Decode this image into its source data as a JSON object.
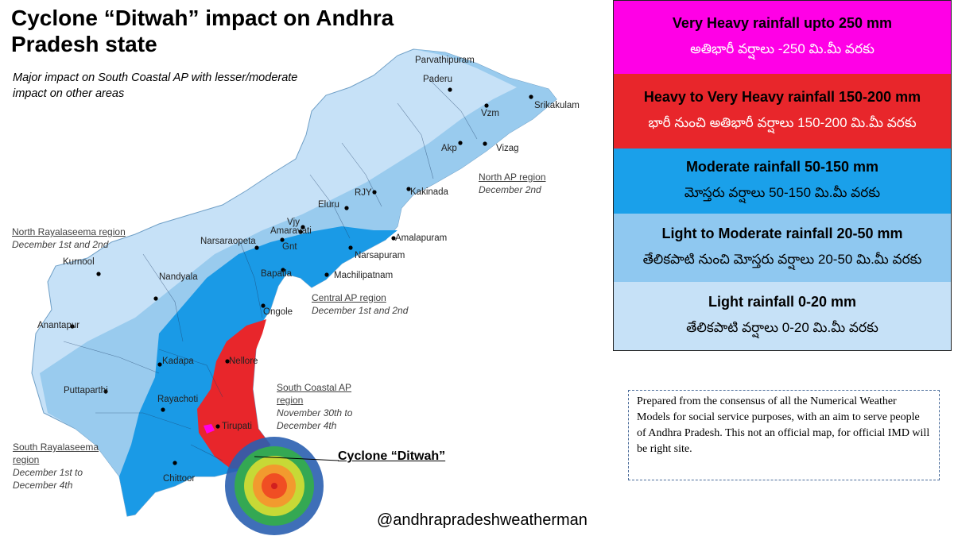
{
  "header": {
    "title": "Cyclone “Ditwah” impact on Andhra Pradesh state",
    "subtitle": "Major impact on South Coastal AP with lesser/moderate impact on other areas"
  },
  "map": {
    "cities": [
      "Parvathipuram",
      "Paderu",
      "Vzm",
      "Srikakulam",
      "Akp",
      "Vizag",
      "Kakinada",
      "RJY",
      "Eluru",
      "Vjy",
      "Amaravati",
      "Gnt",
      "Narsaraopeta",
      "Amalapuram",
      "Narsapuram",
      "Machilipatnam",
      "Bapatla",
      "Ongole",
      "Kurnool",
      "Nandyala",
      "Anantapur",
      "Kadapa",
      "Nellore",
      "Puttaparthi",
      "Rayachoti",
      "Tirupati",
      "Chittoor"
    ],
    "regions": [
      {
        "name": "North AP region",
        "dates": "December 2nd"
      },
      {
        "name": "North Rayalaseema region",
        "dates": "December 1st and 2nd"
      },
      {
        "name": "Central AP region",
        "dates": "December 1st and 2nd"
      },
      {
        "name": "South Coastal AP region",
        "dates": "November 30th to December 4th"
      },
      {
        "name": "South Rayalaseema region",
        "dates": "December 1st to December 4th"
      }
    ],
    "cyclone_label": "Cyclone “Ditwah”"
  },
  "legend": [
    {
      "english": "Very Heavy rainfall upto 250 mm",
      "telugu": "అతిభారీ వర్షాలు -250 మి.మీ వరకు",
      "color": "#ff00e6"
    },
    {
      "english": "Heavy to Very Heavy rainfall 150-200 mm",
      "telugu": "భారీ నుంచి అతిభారీ వర్షాలు 150-200 మి.మీ వరకు",
      "color": "#e8262b"
    },
    {
      "english": "Moderate rainfall 50-150 mm",
      "telugu": "మోస్తరు వర్షాలు 50-150 మి.మీ వరకు",
      "color": "#1aa0ea"
    },
    {
      "english": "Light to Moderate rainfall 20-50 mm",
      "telugu": "తేలికపాటి నుంచి మోస్తరు వర్షాలు 20-50 మి.మీ వరకు",
      "color": "#8fc8f0"
    },
    {
      "english": "Light rainfall 0-20 mm",
      "telugu": "తేలికపాటి వర్షాలు 0-20 మి.మీ వరకు",
      "color": "#c6e1f7"
    }
  ],
  "note": "Prepared from the consensus of all the Numerical Weather Models for social service purposes,  with an aim to serve people of Andhra Pradesh. This not an official map, for official IMD will be right site.",
  "footer": {
    "handle": "@andhrapradeshweatherman"
  }
}
